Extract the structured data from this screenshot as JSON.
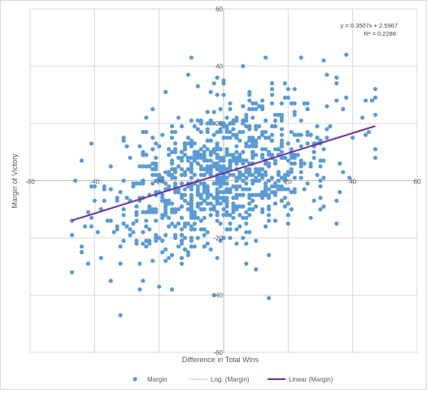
{
  "chart_data": {
    "type": "scatter",
    "title": "",
    "xlabel": "Difference in Total Wins",
    "ylabel": "Margin of Victory",
    "xlim": [
      -60,
      60
    ],
    "ylim": [
      -60,
      60
    ],
    "x_ticks": [
      -60,
      -40,
      -20,
      0,
      20,
      40,
      60
    ],
    "y_ticks": [
      -60,
      -40,
      -20,
      0,
      20,
      40,
      60
    ],
    "x_tick_labels": [
      "-60",
      "-40",
      "-20",
      "0",
      "20",
      "40",
      "60"
    ],
    "y_tick_labels": [
      "-60",
      "-40",
      "-20",
      "0",
      "20",
      "40",
      "60"
    ],
    "grid": true,
    "legend_position": "bottom",
    "colors": {
      "points": "#5b9bd5",
      "trendline": "#7030a0",
      "log_trendline": "#5b9bd5",
      "grid": "#d9d9d9"
    },
    "legend": [
      {
        "label": "Margin",
        "marker": "dot"
      },
      {
        "label": "Log. (Margin)",
        "marker": "dotted-line"
      },
      {
        "label": "Linear (Margin)",
        "marker": "solid-line"
      }
    ],
    "trendline": {
      "slope": 0.3507,
      "intercept": 2.5967,
      "x_range": [
        -47,
        47
      ]
    },
    "equation_text": "y = 0.3507x + 2.5967",
    "r2_text": "R² = 0.2288",
    "series": [
      {
        "name": "Margin",
        "point_count": 1000,
        "x_range": [
          -47,
          47
        ],
        "y_range": [
          -47,
          45
        ],
        "sampled_outliers": [
          [
            -47,
            -32
          ],
          [
            -32,
            -47
          ],
          [
            -35,
            -35
          ],
          [
            -44,
            -25
          ],
          [
            -42,
            -29
          ],
          [
            -10,
            43
          ],
          [
            14,
            -41
          ],
          [
            13,
            43
          ],
          [
            38,
            44
          ],
          [
            31,
            42
          ],
          [
            44,
            28
          ],
          [
            46,
            28
          ],
          [
            -23,
            -22
          ],
          [
            -30,
            12
          ],
          [
            35,
            -15
          ],
          [
            10,
            -31
          ],
          [
            30,
            -10
          ],
          [
            40,
            15
          ]
        ]
      }
    ]
  }
}
